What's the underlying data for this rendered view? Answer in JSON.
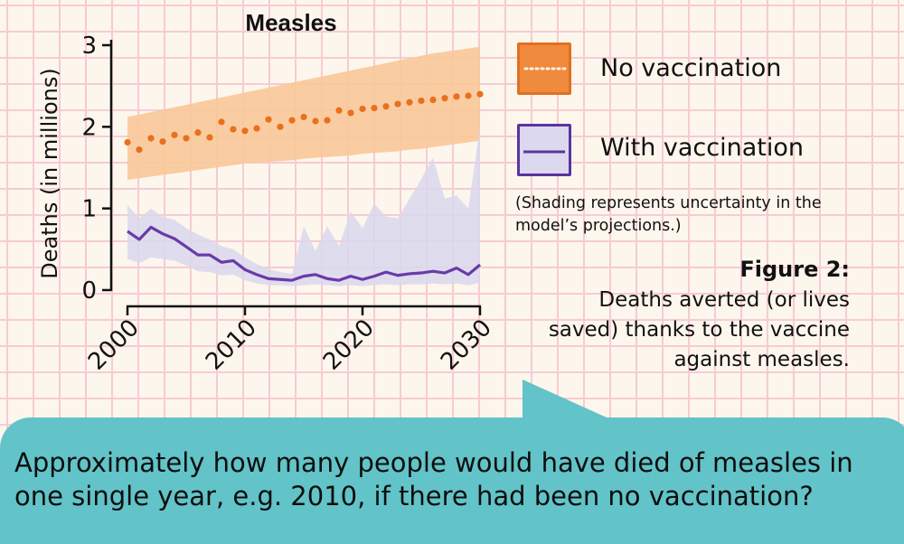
{
  "chart_data": {
    "type": "line",
    "title": "Measles",
    "ylabel": "Deaths (in millions)",
    "xlabel": "",
    "xlim": [
      1999,
      2030
    ],
    "ylim": [
      0,
      3
    ],
    "xticks": [
      2000,
      2010,
      2020,
      2030
    ],
    "yticks": [
      0,
      1,
      2,
      3
    ],
    "legend_position": "right",
    "series": [
      {
        "name": "No vaccination",
        "style": "dotted",
        "color": "#e8701e",
        "band_color": "#f8c999",
        "x": [
          2000,
          2001,
          2002,
          2003,
          2004,
          2005,
          2006,
          2007,
          2008,
          2009,
          2010,
          2011,
          2012,
          2013,
          2014,
          2015,
          2016,
          2017,
          2018,
          2019,
          2020,
          2021,
          2022,
          2023,
          2024,
          2025,
          2026,
          2027,
          2028,
          2029,
          2030
        ],
        "values": [
          1.81,
          1.72,
          1.86,
          1.82,
          1.9,
          1.86,
          1.93,
          1.87,
          2.06,
          1.97,
          1.95,
          1.98,
          2.09,
          2.0,
          2.08,
          2.12,
          2.07,
          2.08,
          2.2,
          2.17,
          2.22,
          2.23,
          2.25,
          2.28,
          2.3,
          2.32,
          2.33,
          2.35,
          2.37,
          2.38,
          2.4
        ],
        "lower": [
          1.35,
          1.37,
          1.39,
          1.41,
          1.43,
          1.45,
          1.47,
          1.49,
          1.51,
          1.53,
          1.55,
          1.56,
          1.57,
          1.58,
          1.59,
          1.61,
          1.62,
          1.63,
          1.64,
          1.65,
          1.67,
          1.68,
          1.69,
          1.7,
          1.72,
          1.73,
          1.75,
          1.77,
          1.79,
          1.81,
          1.83
        ],
        "upper": [
          2.12,
          2.15,
          2.18,
          2.21,
          2.24,
          2.27,
          2.3,
          2.33,
          2.36,
          2.39,
          2.42,
          2.45,
          2.48,
          2.51,
          2.54,
          2.57,
          2.6,
          2.63,
          2.66,
          2.69,
          2.72,
          2.75,
          2.78,
          2.81,
          2.84,
          2.87,
          2.9,
          2.92,
          2.94,
          2.96,
          2.98
        ]
      },
      {
        "name": "With vaccination",
        "style": "solid",
        "color": "#6a3aa8",
        "band_color": "#d9d8ed",
        "x": [
          2000,
          2001,
          2002,
          2003,
          2004,
          2005,
          2006,
          2007,
          2008,
          2009,
          2010,
          2011,
          2012,
          2013,
          2014,
          2015,
          2016,
          2017,
          2018,
          2019,
          2020,
          2021,
          2022,
          2023,
          2024,
          2025,
          2026,
          2027,
          2028,
          2029,
          2030
        ],
        "values": [
          0.72,
          0.62,
          0.77,
          0.69,
          0.63,
          0.53,
          0.43,
          0.43,
          0.34,
          0.36,
          0.25,
          0.19,
          0.14,
          0.13,
          0.12,
          0.17,
          0.19,
          0.14,
          0.12,
          0.17,
          0.13,
          0.17,
          0.22,
          0.18,
          0.2,
          0.21,
          0.23,
          0.21,
          0.27,
          0.19,
          0.31
        ],
        "lower": [
          0.38,
          0.33,
          0.4,
          0.38,
          0.36,
          0.3,
          0.23,
          0.22,
          0.18,
          0.19,
          0.12,
          0.08,
          0.06,
          0.06,
          0.05,
          0.06,
          0.07,
          0.06,
          0.05,
          0.06,
          0.05,
          0.06,
          0.07,
          0.06,
          0.07,
          0.07,
          0.08,
          0.07,
          0.08,
          0.06,
          0.09
        ],
        "upper": [
          1.04,
          0.88,
          1.0,
          0.9,
          0.86,
          0.76,
          0.68,
          0.62,
          0.54,
          0.5,
          0.4,
          0.32,
          0.26,
          0.22,
          0.2,
          0.78,
          0.48,
          0.78,
          0.54,
          0.96,
          0.76,
          1.06,
          0.9,
          0.88,
          1.12,
          1.36,
          1.62,
          1.12,
          1.16,
          1.0,
          2.0
        ]
      }
    ]
  },
  "legend": {
    "no_vacc": "No vaccination",
    "with_vacc": "With vaccination",
    "note": "(Shading represents uncertainty in the model’s projections.)"
  },
  "caption": {
    "title": "Figure 2:",
    "line1": "Deaths averted (or lives",
    "line2": "saved) thanks to the vaccine",
    "line3": "against measles."
  },
  "question": "Approximately how many people would have died of measles in one single year, e.g. 2010, if there had been no vaccination?"
}
